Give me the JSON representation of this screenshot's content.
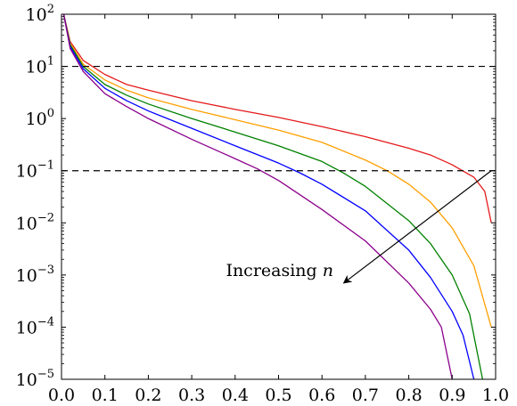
{
  "chart_data": {
    "type": "line",
    "title": "",
    "xlabel": "",
    "ylabel": "",
    "xlim": [
      0.0,
      1.0
    ],
    "ylim": [
      1e-05,
      100
    ],
    "yscale": "log",
    "grid": false,
    "x_ticks": [
      "0.0",
      "0.1",
      "0.2",
      "0.3",
      "0.4",
      "0.5",
      "0.6",
      "0.7",
      "0.8",
      "0.9",
      "1.0"
    ],
    "y_ticks": [
      {
        "base": "10",
        "exp": "2",
        "value": 100
      },
      {
        "base": "10",
        "exp": "1",
        "value": 10
      },
      {
        "base": "10",
        "exp": "0",
        "value": 1
      },
      {
        "base": "10",
        "exp": "−1",
        "value": 0.1
      },
      {
        "base": "10",
        "exp": "−2",
        "value": 0.01
      },
      {
        "base": "10",
        "exp": "−3",
        "value": 0.001
      },
      {
        "base": "10",
        "exp": "−4",
        "value": 0.0001
      },
      {
        "base": "10",
        "exp": "−5",
        "value": 1e-05
      }
    ],
    "reference_lines": [
      {
        "y": 10,
        "style": "dashed",
        "color": "#000000"
      },
      {
        "y": 0.1,
        "style": "dashed",
        "color": "#000000"
      }
    ],
    "series": [
      {
        "color": "#e41a1c",
        "points": [
          [
            0.005,
            100
          ],
          [
            0.02,
            30
          ],
          [
            0.05,
            13
          ],
          [
            0.1,
            7
          ],
          [
            0.15,
            4.5
          ],
          [
            0.2,
            3.5
          ],
          [
            0.3,
            2.2
          ],
          [
            0.4,
            1.5
          ],
          [
            0.5,
            1.05
          ],
          [
            0.6,
            0.7
          ],
          [
            0.7,
            0.45
          ],
          [
            0.8,
            0.27
          ],
          [
            0.85,
            0.2
          ],
          [
            0.9,
            0.13
          ],
          [
            0.95,
            0.075
          ],
          [
            0.975,
            0.04
          ],
          [
            0.99,
            0.01
          ]
        ]
      },
      {
        "color": "#ff9f00",
        "points": [
          [
            0.005,
            100
          ],
          [
            0.02,
            28
          ],
          [
            0.05,
            11
          ],
          [
            0.1,
            5.5
          ],
          [
            0.15,
            3.5
          ],
          [
            0.2,
            2.5
          ],
          [
            0.3,
            1.5
          ],
          [
            0.4,
            0.95
          ],
          [
            0.5,
            0.6
          ],
          [
            0.6,
            0.35
          ],
          [
            0.7,
            0.16
          ],
          [
            0.75,
            0.1
          ],
          [
            0.8,
            0.055
          ],
          [
            0.85,
            0.025
          ],
          [
            0.9,
            0.008
          ],
          [
            0.95,
            0.0015
          ],
          [
            0.99,
            0.0001
          ]
        ]
      },
      {
        "color": "#008000",
        "points": [
          [
            0.005,
            100
          ],
          [
            0.02,
            26
          ],
          [
            0.05,
            10
          ],
          [
            0.1,
            4.5
          ],
          [
            0.15,
            2.8
          ],
          [
            0.2,
            1.9
          ],
          [
            0.3,
            1.0
          ],
          [
            0.4,
            0.55
          ],
          [
            0.5,
            0.3
          ],
          [
            0.6,
            0.15
          ],
          [
            0.65,
            0.09
          ],
          [
            0.7,
            0.05
          ],
          [
            0.8,
            0.011
          ],
          [
            0.85,
            0.004
          ],
          [
            0.9,
            0.001
          ],
          [
            0.94,
            0.00018
          ],
          [
            0.97,
            1e-05
          ]
        ]
      },
      {
        "color": "#0000ff",
        "points": [
          [
            0.005,
            100
          ],
          [
            0.02,
            24
          ],
          [
            0.05,
            9
          ],
          [
            0.1,
            3.8
          ],
          [
            0.15,
            2.2
          ],
          [
            0.2,
            1.4
          ],
          [
            0.3,
            0.65
          ],
          [
            0.4,
            0.3
          ],
          [
            0.5,
            0.14
          ],
          [
            0.55,
            0.09
          ],
          [
            0.6,
            0.055
          ],
          [
            0.7,
            0.017
          ],
          [
            0.8,
            0.003
          ],
          [
            0.85,
            0.0009
          ],
          [
            0.9,
            0.0002
          ],
          [
            0.925,
            7e-05
          ],
          [
            0.95,
            1e-05
          ]
        ]
      },
      {
        "color": "#8b008b",
        "points": [
          [
            0.005,
            100
          ],
          [
            0.02,
            22
          ],
          [
            0.05,
            8
          ],
          [
            0.1,
            3
          ],
          [
            0.15,
            1.7
          ],
          [
            0.2,
            1.0
          ],
          [
            0.3,
            0.4
          ],
          [
            0.4,
            0.17
          ],
          [
            0.45,
            0.11
          ],
          [
            0.5,
            0.065
          ],
          [
            0.6,
            0.018
          ],
          [
            0.7,
            0.0045
          ],
          [
            0.8,
            0.0007
          ],
          [
            0.85,
            0.00022
          ],
          [
            0.875,
            0.0001
          ],
          [
            0.9,
            1e-05
          ]
        ]
      }
    ],
    "annotations": [
      {
        "text": "Increasing ",
        "italic_part": "n",
        "arrow_from": [
          0.99,
          0.1
        ],
        "arrow_to": [
          0.65,
          0.0007
        ]
      }
    ]
  }
}
